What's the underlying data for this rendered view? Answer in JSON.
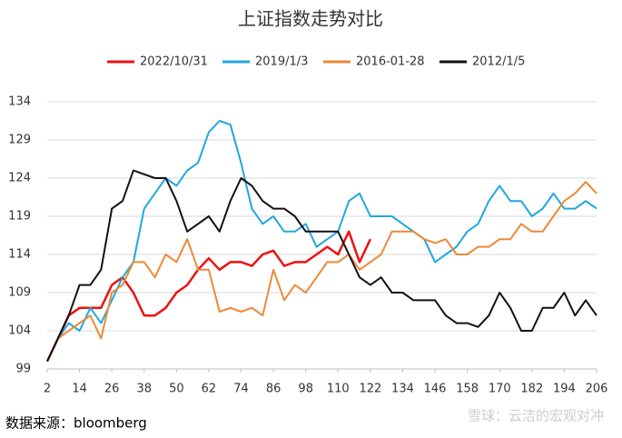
{
  "chart_data": {
    "type": "line",
    "title": "上证指数走势对比",
    "source": "数据来源：bloomberg",
    "watermark": "雪球：云洁的宏观对冲",
    "x": [
      2,
      6,
      10,
      14,
      18,
      22,
      26,
      30,
      34,
      38,
      42,
      46,
      50,
      54,
      58,
      62,
      66,
      70,
      74,
      78,
      82,
      86,
      90,
      94,
      98,
      102,
      106,
      110,
      114,
      118,
      122,
      126,
      130,
      134,
      138,
      142,
      146,
      150,
      154,
      158,
      162,
      166,
      170,
      174,
      178,
      182,
      186,
      190,
      194,
      198,
      202,
      206
    ],
    "xlim": [
      2,
      206
    ],
    "xticks": [
      2,
      14,
      26,
      38,
      50,
      62,
      74,
      86,
      98,
      110,
      122,
      134,
      146,
      158,
      170,
      182,
      194,
      206
    ],
    "ylim": [
      99,
      134
    ],
    "yticks": [
      99,
      104,
      109,
      114,
      119,
      124,
      129,
      134
    ],
    "grid": true,
    "legend": "top",
    "series": [
      {
        "name": "2022/10/31",
        "color": "#ee1111",
        "values": [
          100,
          103,
          106,
          107,
          107,
          107,
          110,
          111,
          109,
          106,
          106,
          107,
          109,
          110,
          112,
          113.5,
          112,
          113,
          113,
          112.5,
          114,
          114.5,
          112.5,
          113,
          113,
          114,
          115,
          114,
          117,
          113,
          116,
          null,
          null,
          null,
          null,
          null,
          null,
          null,
          null,
          null,
          null,
          null,
          null,
          null,
          null,
          null,
          null,
          null,
          null,
          null,
          null,
          null
        ]
      },
      {
        "name": "2019/1/3",
        "color": "#1fa8e0",
        "values": [
          100,
          103,
          105,
          104,
          107,
          105,
          108,
          111,
          113,
          120,
          122,
          124,
          123,
          125,
          126,
          130,
          131.5,
          131,
          126,
          120,
          118,
          119,
          117,
          117,
          118,
          115,
          116,
          117,
          121,
          122,
          119,
          119,
          119,
          118,
          117,
          116,
          113,
          114,
          115,
          117,
          118,
          121,
          123,
          121,
          121,
          119,
          120,
          122,
          120,
          120,
          121,
          120
        ]
      },
      {
        "name": "2016-01-28",
        "color": "#ed8936",
        "values": [
          100,
          103,
          104,
          105,
          106,
          103,
          109,
          110,
          113,
          113,
          111,
          114,
          113,
          116,
          112,
          112,
          106.5,
          107,
          106.5,
          107,
          106,
          112,
          108,
          110,
          109,
          111,
          113,
          113,
          114,
          112,
          113,
          114,
          117,
          117,
          117,
          116,
          115.5,
          116,
          114,
          114,
          115,
          115,
          116,
          116,
          118,
          117,
          117,
          119,
          121,
          122,
          123.5,
          122
        ]
      },
      {
        "name": "2012/1/5",
        "color": "#111111",
        "values": [
          100,
          103,
          106,
          110,
          110,
          112,
          120,
          121,
          125,
          124.5,
          124,
          124,
          121,
          117,
          118,
          119,
          117,
          121,
          124,
          123,
          121,
          120,
          120,
          119,
          117,
          117,
          117,
          117,
          114,
          111,
          110,
          111,
          109,
          109,
          108,
          108,
          108,
          106,
          105,
          105,
          104.5,
          106,
          109,
          107,
          104,
          104,
          107,
          107,
          109,
          106,
          108,
          106
        ]
      }
    ]
  }
}
